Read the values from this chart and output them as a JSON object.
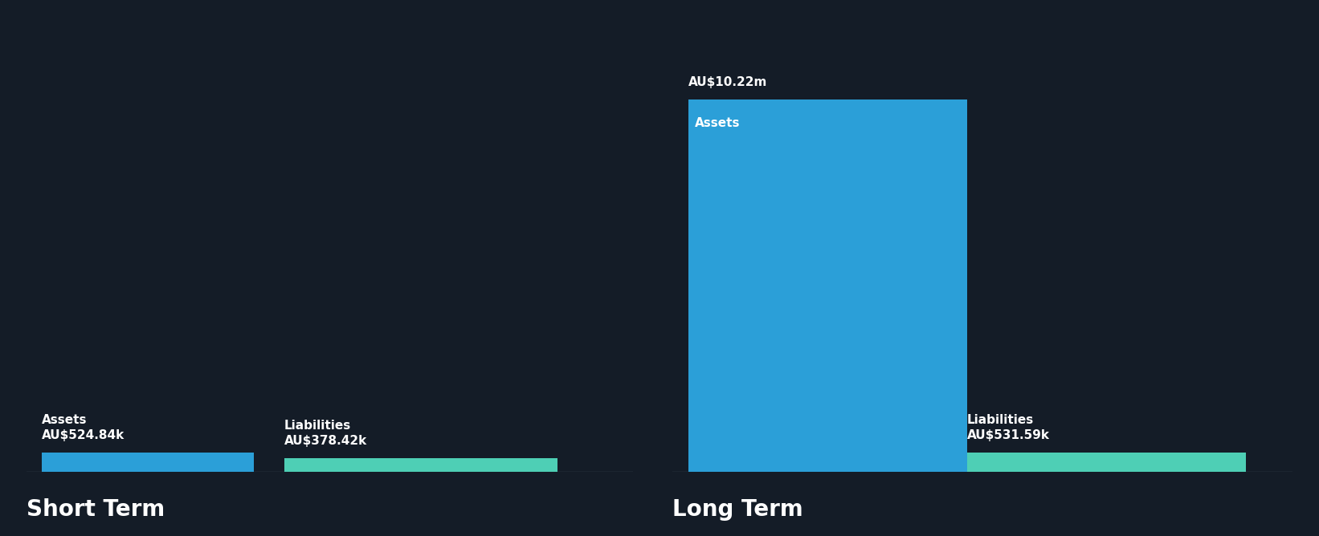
{
  "background_color": "#141c27",
  "bar_color_assets": "#2b9fd8",
  "bar_color_liabilities": "#4ecfb5",
  "axis_line_color": "#3a4556",
  "short_term_assets_value": 524840,
  "short_term_liabilities_value": 378420,
  "short_term_assets_label": "AU$524.84k",
  "short_term_liabilities_label": "AU$378.42k",
  "short_term_assets_text": "Assets",
  "short_term_liabilities_text": "Liabilities",
  "short_term_title": "Short Term",
  "long_term_assets_value": 10220000,
  "long_term_liabilities_value": 531590,
  "long_term_assets_label": "AU$10.22m",
  "long_term_liabilities_label": "AU$531.59k",
  "long_term_assets_text": "Assets",
  "long_term_liabilities_text": "Liabilities",
  "long_term_title": "Long Term",
  "text_color": "#ffffff",
  "label_fontsize": 11,
  "value_fontsize": 11,
  "title_fontsize": 20,
  "inside_label_fontsize": 11
}
